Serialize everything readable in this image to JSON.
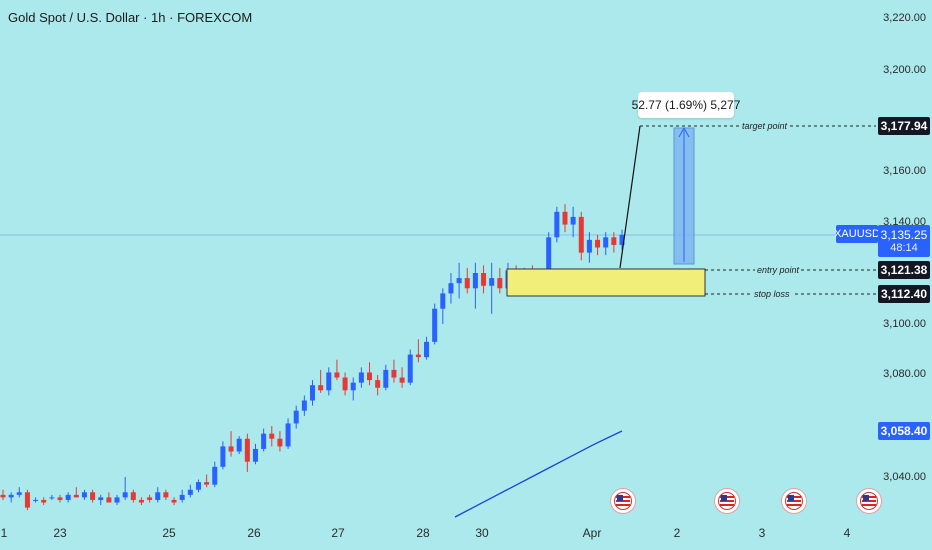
{
  "header": {
    "title": "Gold Spot / U.S. Dollar · 1h · FOREXCOM"
  },
  "price_axis": {
    "ticks": [
      "3,220.00",
      "3,200.00",
      "3,160.00",
      "3,140.00",
      "3,100.00",
      "3,080.00",
      "3,040.00"
    ],
    "badges": {
      "target": "3,177.94",
      "entry": "3,121.38",
      "stop": "3,112.40",
      "ma": "3,058.40"
    },
    "live": {
      "ticker": "XAUUSD",
      "price": "3,135.25",
      "countdown": "48:14"
    }
  },
  "time_axis": {
    "labels": [
      "1",
      "23",
      "25",
      "26",
      "27",
      "28",
      "30",
      "Apr",
      "2",
      "3",
      "4"
    ]
  },
  "annotations": {
    "measure": "52.77 (1.69%) 5,277",
    "target_label": "target point",
    "entry_label": "entry point",
    "stop_label": "stop loss"
  },
  "colors": {
    "background": "#abe9ec",
    "up_candle": "#2962ff",
    "down_candle": "#e53935",
    "zone": "#f0ef7a",
    "projection": "#7fb6f0",
    "ma_line": "#1e40d8",
    "badge_dark": "#131722",
    "badge_blue": "#2962ff"
  },
  "chart_data": {
    "type": "candlestick",
    "symbol": "XAUUSD",
    "timeframe": "1h",
    "price_range": [
      3030,
      3225
    ],
    "current_price": 3135.25,
    "levels": {
      "target": 3177.94,
      "entry": 3121.38,
      "stop_loss": 3112.4,
      "moving_average_last": 3058.4
    },
    "candles": [
      [
        3033,
        3035,
        3031,
        3032
      ],
      [
        3032,
        3034,
        3030,
        3033
      ],
      [
        3033,
        3036,
        3032,
        3034
      ],
      [
        3034,
        3035,
        3027,
        3028
      ],
      [
        3031,
        3032,
        3030,
        3031
      ],
      [
        3031,
        3032,
        3029,
        3030
      ],
      [
        3032,
        3033,
        3031,
        3032
      ],
      [
        3032,
        3033,
        3030,
        3031
      ],
      [
        3031,
        3034,
        3030,
        3033
      ],
      [
        3033,
        3036,
        3032,
        3032
      ],
      [
        3032,
        3035,
        3031,
        3034
      ],
      [
        3034,
        3035,
        3030,
        3031
      ],
      [
        3031,
        3033,
        3029,
        3032
      ],
      [
        3032,
        3034,
        3031,
        3030
      ],
      [
        3030,
        3033,
        3029,
        3032
      ],
      [
        3032,
        3040,
        3031,
        3034
      ],
      [
        3034,
        3035,
        3030,
        3031
      ],
      [
        3031,
        3032,
        3029,
        3030
      ],
      [
        3032,
        3033,
        3030,
        3031
      ],
      [
        3031,
        3036,
        3030,
        3034
      ],
      [
        3034,
        3035,
        3031,
        3032
      ],
      [
        3031,
        3032,
        3029,
        3030
      ],
      [
        3031,
        3035,
        3030,
        3033
      ],
      [
        3033,
        3037,
        3032,
        3035
      ],
      [
        3035,
        3039,
        3034,
        3038
      ],
      [
        3038,
        3041,
        3036,
        3037
      ],
      [
        3037,
        3046,
        3036,
        3044
      ],
      [
        3044,
        3054,
        3043,
        3052
      ],
      [
        3052,
        3058,
        3048,
        3050
      ],
      [
        3050,
        3056,
        3049,
        3055
      ],
      [
        3055,
        3057,
        3042,
        3046
      ],
      [
        3046,
        3053,
        3045,
        3051
      ],
      [
        3051,
        3059,
        3050,
        3057
      ],
      [
        3057,
        3060,
        3052,
        3055
      ],
      [
        3055,
        3058,
        3050,
        3052
      ],
      [
        3052,
        3063,
        3051,
        3061
      ],
      [
        3061,
        3068,
        3059,
        3066
      ],
      [
        3066,
        3072,
        3064,
        3070
      ],
      [
        3070,
        3078,
        3068,
        3076
      ],
      [
        3076,
        3082,
        3073,
        3074
      ],
      [
        3074,
        3083,
        3072,
        3081
      ],
      [
        3081,
        3086,
        3078,
        3079
      ],
      [
        3079,
        3081,
        3072,
        3074
      ],
      [
        3074,
        3079,
        3070,
        3077
      ],
      [
        3077,
        3083,
        3075,
        3081
      ],
      [
        3081,
        3085,
        3076,
        3078
      ],
      [
        3078,
        3080,
        3072,
        3075
      ],
      [
        3075,
        3084,
        3074,
        3082
      ],
      [
        3082,
        3086,
        3077,
        3079
      ],
      [
        3079,
        3083,
        3075,
        3077
      ],
      [
        3077,
        3090,
        3076,
        3088
      ],
      [
        3088,
        3094,
        3085,
        3087
      ],
      [
        3087,
        3095,
        3086,
        3093
      ],
      [
        3093,
        3108,
        3092,
        3106
      ],
      [
        3106,
        3114,
        3100,
        3112
      ],
      [
        3112,
        3120,
        3108,
        3116
      ],
      [
        3116,
        3124,
        3110,
        3118
      ],
      [
        3118,
        3122,
        3112,
        3114
      ],
      [
        3114,
        3124,
        3106,
        3120
      ],
      [
        3120,
        3123,
        3112,
        3115
      ],
      [
        3115,
        3124,
        3104,
        3118
      ],
      [
        3118,
        3122,
        3112,
        3114
      ],
      [
        3114,
        3124,
        3111,
        3121
      ],
      [
        3121,
        3123,
        3116,
        3118
      ],
      [
        3118,
        3122,
        3115,
        3120
      ],
      [
        3120,
        3123,
        3116,
        3117
      ],
      [
        3117,
        3121,
        3114,
        3119
      ],
      [
        3119,
        3136,
        3118,
        3134
      ],
      [
        3134,
        3146,
        3132,
        3144
      ],
      [
        3144,
        3147,
        3136,
        3139
      ],
      [
        3139,
        3146,
        3134,
        3142
      ],
      [
        3142,
        3144,
        3125,
        3128
      ],
      [
        3128,
        3136,
        3124,
        3133
      ],
      [
        3133,
        3135,
        3127,
        3130
      ],
      [
        3130,
        3136,
        3127,
        3134
      ],
      [
        3134,
        3136,
        3128,
        3131
      ],
      [
        3131,
        3137,
        3129,
        3135
      ]
    ],
    "moving_average": [
      3017,
      3024,
      3031,
      3038,
      3045,
      3052,
      3058.4
    ]
  }
}
